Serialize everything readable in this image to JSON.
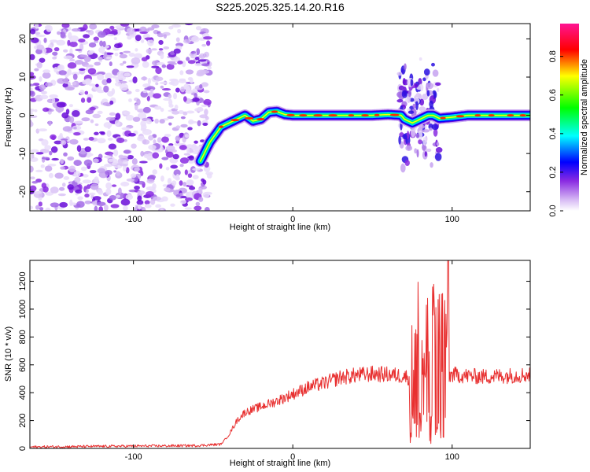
{
  "figure": {
    "title": "S225.2025.325.14.20.R16"
  },
  "chart_data": [
    {
      "type": "heatmap",
      "xlabel": "Height of straight line (km)",
      "ylabel": "Frequency (Hz)",
      "xlim": [
        -165,
        149
      ],
      "ylim": [
        -25,
        24
      ],
      "x_ticks": [
        -100,
        0,
        100
      ],
      "y_ticks": [
        -20,
        -10,
        0,
        10,
        20
      ],
      "colorbar": {
        "label": "Normalized spectral amplitude",
        "range": [
          0,
          0.97
        ],
        "ticks": [
          0.0,
          0.2,
          0.4,
          0.6,
          0.8
        ],
        "colormap": [
          "#ffffff",
          "#d6b8f4",
          "#8a2be2",
          "#0000ff",
          "#00ffff",
          "#00ff00",
          "#ffff00",
          "#ff0000",
          "#ff1493"
        ]
      },
      "noise_region_x": [
        -165,
        -52
      ],
      "ridge": {
        "x": [
          -58,
          -52,
          -45,
          -40,
          -35,
          -30,
          -25,
          -20,
          -15,
          -10,
          -5,
          0,
          10,
          20,
          30,
          40,
          50,
          60,
          68,
          70,
          75,
          80,
          85,
          88,
          92,
          100,
          110,
          120,
          130,
          140,
          149
        ],
        "y": [
          -12,
          -7,
          -3,
          -2,
          -1,
          0,
          -1.5,
          -1,
          0.8,
          1,
          0.2,
          0,
          0,
          0,
          0,
          0,
          0,
          0.2,
          0,
          -1,
          -2,
          -1,
          0,
          0,
          -0.8,
          -0.5,
          0,
          0,
          0,
          0,
          0
        ]
      },
      "scatter_region_x": [
        67,
        92
      ]
    },
    {
      "type": "line",
      "xlabel": "Height of straight line (km)",
      "ylabel": "SNR (10 * v/v)",
      "xlim": [
        -165,
        149
      ],
      "ylim": [
        0,
        1350
      ],
      "x_ticks": [
        -100,
        0,
        100
      ],
      "y_ticks": [
        0,
        200,
        400,
        600,
        800,
        1000,
        1200
      ],
      "color": "#e83030",
      "envelope": {
        "x": [
          -165,
          -120,
          -60,
          -45,
          -40,
          -35,
          -30,
          -20,
          -10,
          0,
          10,
          20,
          30,
          40,
          50,
          60,
          70,
          75,
          80,
          85,
          90,
          95,
          100,
          110,
          120,
          130,
          140,
          149
        ],
        "y": [
          10,
          15,
          20,
          30,
          100,
          200,
          260,
          300,
          340,
          390,
          440,
          470,
          510,
          525,
          535,
          530,
          520,
          500,
          480,
          470,
          480,
          500,
          530,
          520,
          515,
          520,
          525,
          530
        ]
      },
      "volatile_region_x": [
        73,
        98
      ],
      "peak_y": 1350
    }
  ]
}
